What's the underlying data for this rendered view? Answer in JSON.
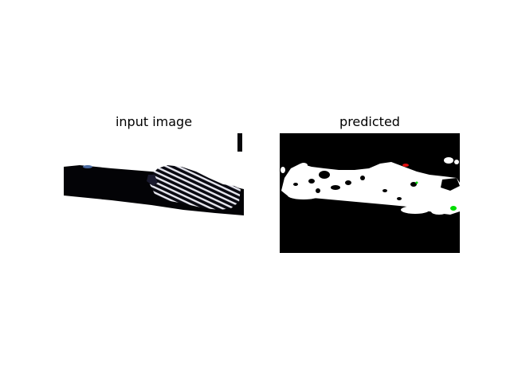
{
  "panels": [
    {
      "title": "input image"
    },
    {
      "title": "predicted"
    }
  ],
  "colors": {
    "background": "#ffffff",
    "mask_foreground": "#ffffff",
    "mask_background": "#000000",
    "label_red": "#e01010",
    "label_green": "#00dd00"
  }
}
